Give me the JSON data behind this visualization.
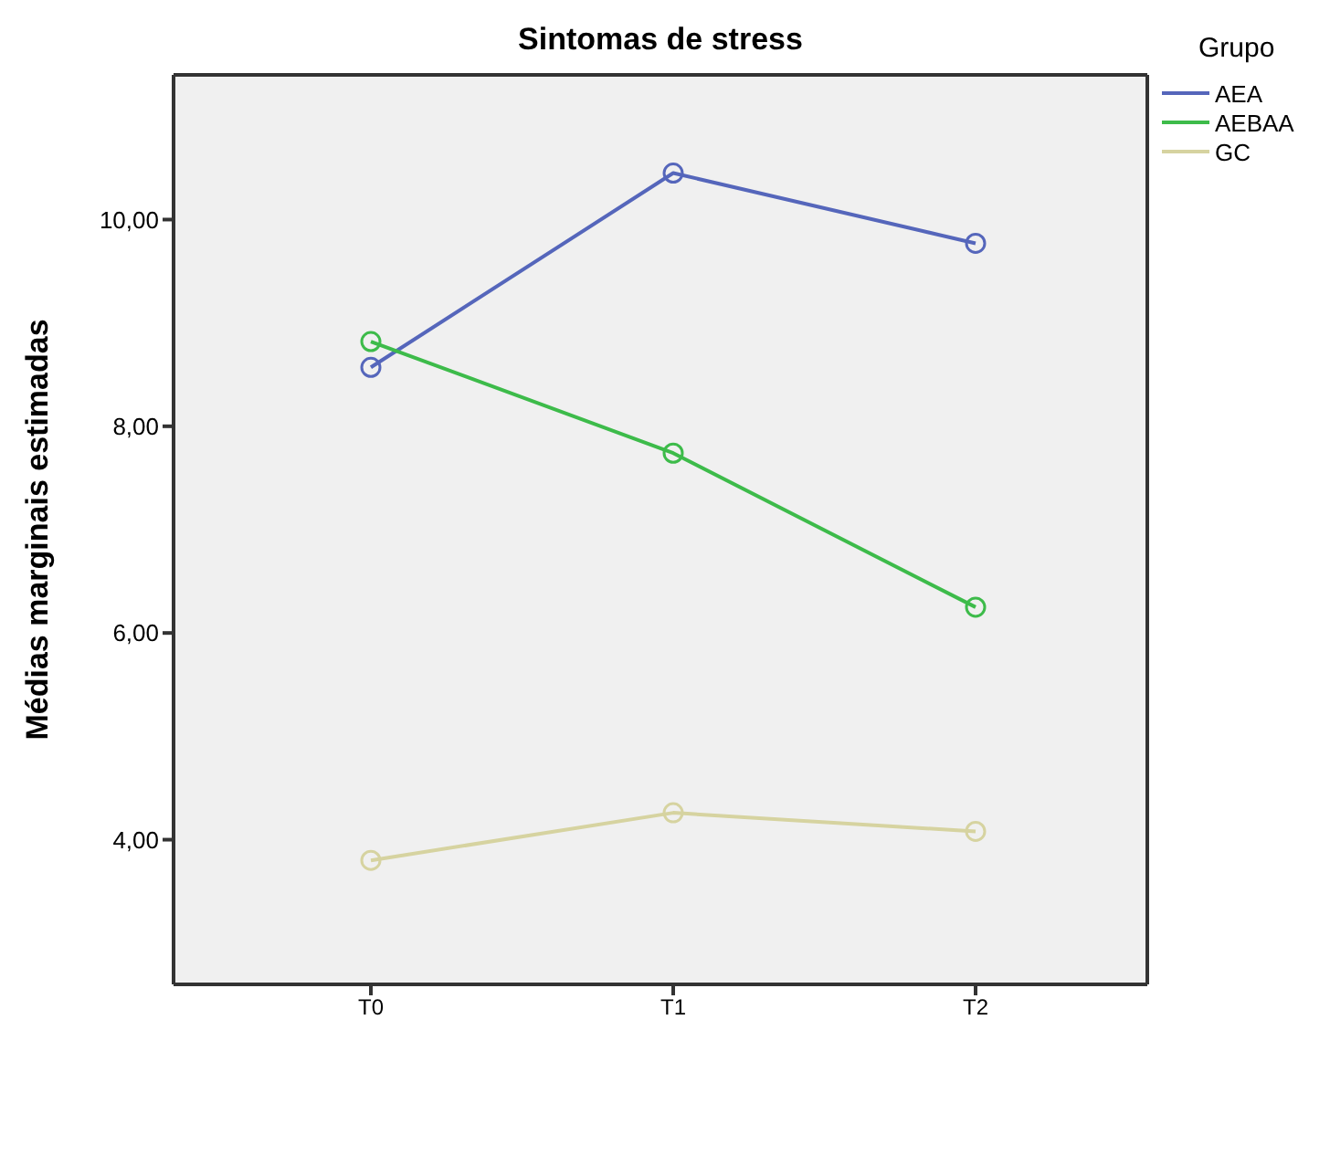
{
  "chart_data": {
    "type": "line",
    "title": "Sintomas de stress",
    "ylabel": "Médias marginais estimadas",
    "legend_title": "Grupo",
    "categories": [
      "T0",
      "T1",
      "T2"
    ],
    "series": [
      {
        "name": "AEA",
        "color": "#5566bb",
        "values": [
          8.57,
          10.45,
          9.77
        ]
      },
      {
        "name": "AEBAA",
        "color": "#3dbb4a",
        "values": [
          8.82,
          7.74,
          6.25
        ]
      },
      {
        "name": "GC",
        "color": "#d6d3a0",
        "values": [
          3.8,
          4.26,
          4.08
        ]
      }
    ],
    "ylim": [
      2.6,
      11.4
    ],
    "yticks": [
      {
        "value": 4,
        "label": "4,00"
      },
      {
        "value": 6,
        "label": "6,00"
      },
      {
        "value": 8,
        "label": "8,00"
      },
      {
        "value": 10,
        "label": "10,00"
      }
    ],
    "legend": "right",
    "marker": "circle",
    "line_style": "solid",
    "grid": false
  }
}
